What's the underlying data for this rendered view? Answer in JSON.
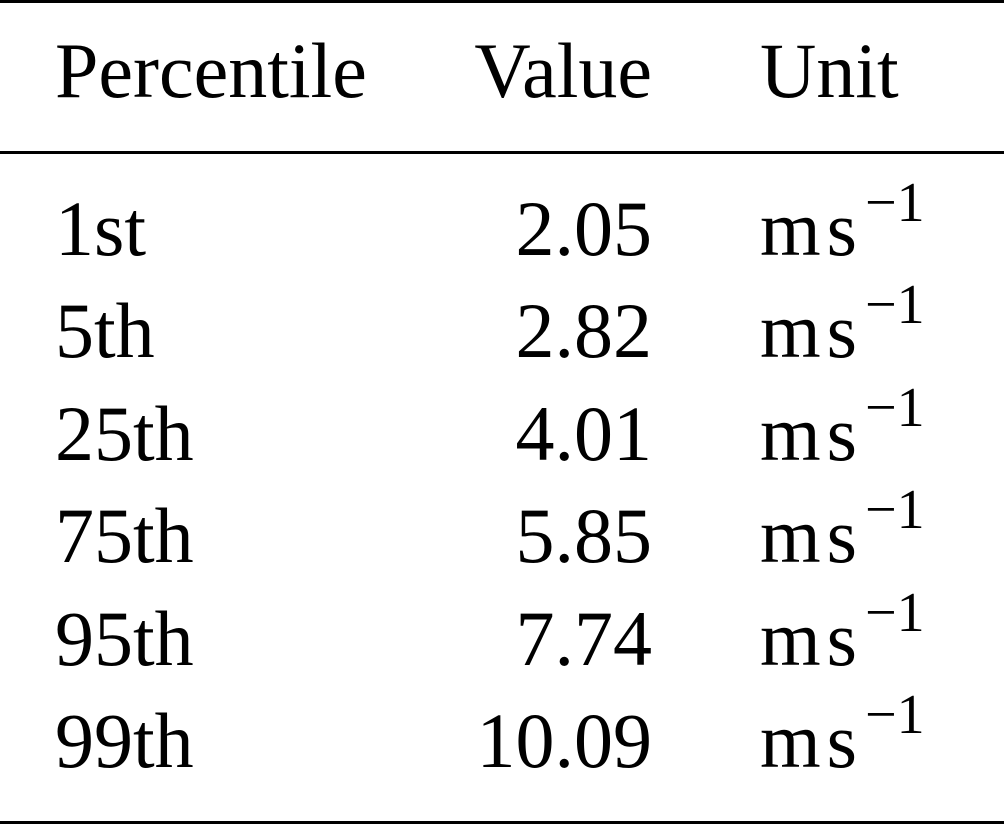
{
  "table": {
    "headers": [
      "Percentile",
      "Value",
      "Unit"
    ],
    "rows": [
      {
        "percentile": "1st",
        "value": "2.05",
        "unit_base": "m",
        "unit_s": "s",
        "unit_exp": "−1"
      },
      {
        "percentile": "5th",
        "value": "2.82",
        "unit_base": "m",
        "unit_s": "s",
        "unit_exp": "−1"
      },
      {
        "percentile": "25th",
        "value": "4.01",
        "unit_base": "m",
        "unit_s": "s",
        "unit_exp": "−1"
      },
      {
        "percentile": "75th",
        "value": "5.85",
        "unit_base": "m",
        "unit_s": "s",
        "unit_exp": "−1"
      },
      {
        "percentile": "95th",
        "value": "7.74",
        "unit_base": "m",
        "unit_s": "s",
        "unit_exp": "−1"
      },
      {
        "percentile": "99th",
        "value": "10.09",
        "unit_base": "m",
        "unit_s": "s",
        "unit_exp": "−1"
      }
    ]
  }
}
